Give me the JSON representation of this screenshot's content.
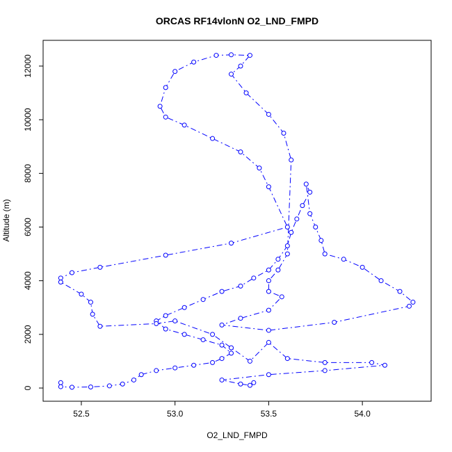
{
  "chart_data": {
    "type": "scatter",
    "title": "ORCAS RF14vlonN O2_LND_FMPD",
    "x_label": "O2_LND_FMPD",
    "y_label": "Altitude (m)",
    "series": [
      {
        "color": "#0000ff",
        "x": [
          52.39,
          52.39,
          52.45,
          52.55,
          52.65,
          52.72,
          52.78,
          52.82,
          52.9,
          53.0,
          53.1,
          53.2,
          53.25,
          53.3,
          53.25,
          53.15,
          53.05,
          52.95,
          52.9,
          52.95,
          53.05,
          53.15,
          53.25,
          53.35,
          53.42,
          53.5,
          53.55,
          53.6,
          53.62,
          53.65,
          53.68,
          53.72,
          53.7,
          53.72,
          53.75,
          53.78,
          53.8,
          53.9,
          54.0,
          54.1,
          54.2,
          54.27,
          54.25,
          53.85,
          53.5,
          53.25,
          53.35,
          53.5,
          53.57,
          53.5,
          53.5,
          53.55,
          53.6,
          53.62,
          53.58,
          53.5,
          53.38,
          53.3,
          53.35,
          53.4,
          53.3,
          53.22,
          53.1,
          53.0,
          52.95,
          52.92,
          52.95,
          53.05,
          53.2,
          53.35,
          53.45,
          53.5,
          53.6,
          53.3,
          52.95,
          52.6,
          52.45,
          52.39,
          52.39,
          52.5,
          52.55,
          52.56,
          52.6,
          52.9,
          53.0,
          53.2,
          53.3,
          53.4,
          53.5,
          53.6,
          53.8,
          54.05,
          54.12,
          53.8,
          53.5,
          53.25,
          53.35,
          53.4,
          53.42
        ],
        "values": [
          200,
          50,
          30,
          40,
          80,
          150,
          300,
          500,
          650,
          750,
          850,
          950,
          1100,
          1300,
          1600,
          1800,
          2000,
          2200,
          2500,
          2700,
          3000,
          3300,
          3600,
          3800,
          4100,
          4400,
          4800,
          5300,
          5800,
          6300,
          6800,
          7300,
          7600,
          6500,
          6000,
          5500,
          5000,
          4800,
          4500,
          4000,
          3600,
          3200,
          3050,
          2450,
          2150,
          2350,
          2600,
          2900,
          3400,
          3600,
          4000,
          4400,
          5000,
          8500,
          9500,
          10200,
          11000,
          11700,
          12000,
          12400,
          12420,
          12400,
          12150,
          11800,
          11200,
          10500,
          10100,
          9800,
          9300,
          8800,
          8200,
          7500,
          6000,
          5400,
          4950,
          4500,
          4300,
          4100,
          3950,
          3500,
          3200,
          2750,
          2300,
          2400,
          2500,
          2000,
          1500,
          1000,
          1700,
          1100,
          950,
          950,
          850,
          650,
          500,
          300,
          150,
          100,
          200
        ]
      }
    ],
    "xlim": [
      52.296,
      54.367
    ],
    "ylim": [
      -492,
      12959
    ],
    "xticks": [
      {
        "value": 52.5,
        "label": "52.5"
      },
      {
        "value": 53,
        "label": "53.0"
      },
      {
        "value": 53.5,
        "label": "53.5"
      },
      {
        "value": 54,
        "label": "54.0"
      }
    ],
    "yticks": [
      0,
      2000,
      4000,
      6000,
      8000,
      10000,
      12000
    ]
  }
}
